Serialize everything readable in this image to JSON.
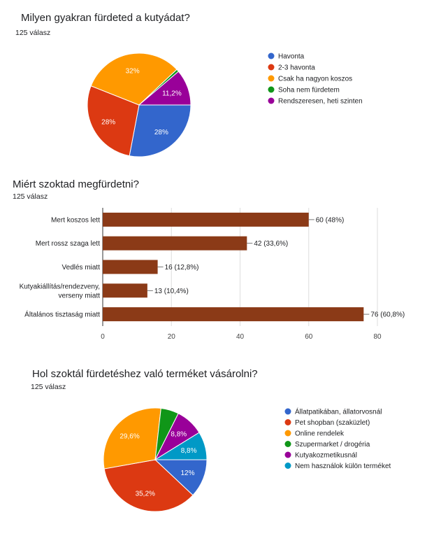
{
  "charts": [
    {
      "title": "Milyen gyakran fürdeted a kutyádat?",
      "responses": "125 válasz"
    },
    {
      "title": "Miért szoktad megfürdetni?",
      "responses": "125 válasz"
    },
    {
      "title": "Hol szoktál fürdetéshez való terméket vásárolni?",
      "responses": "125 válasz"
    }
  ],
  "chart_data": [
    {
      "type": "pie",
      "title": "Milyen gyakran fürdeted a kutyádat?",
      "labels": [
        "Havonta",
        "2-3 havonta",
        "Csak ha nagyon koszos",
        "Soha nem fürdetem",
        "Rendszeresen, heti szinten"
      ],
      "values": [
        28,
        28,
        32,
        0.8,
        11.2
      ],
      "value_labels": [
        "28%",
        "28%",
        "32%",
        "",
        "11,2%"
      ],
      "colors": [
        "#3366cc",
        "#dc3912",
        "#ff9900",
        "#109618",
        "#990099"
      ],
      "legend": "right"
    },
    {
      "type": "bar",
      "orientation": "horizontal",
      "title": "Miért szoktad megfürdetni?",
      "categories": [
        [
          "Mert koszos lett"
        ],
        [
          "Mert rossz szaga lett"
        ],
        [
          "Vedlés miatt"
        ],
        [
          "Kutyakiállítás/rendezveny,",
          "verseny miatt"
        ],
        [
          "Általános tisztaság miatt"
        ]
      ],
      "values": [
        60,
        42,
        16,
        13,
        76
      ],
      "value_labels": [
        "60 (48%)",
        "42 (33,6%)",
        "16 (12,8%)",
        "13 (10,4%)",
        "76 (60,8%)"
      ],
      "xlim": [
        0,
        80
      ],
      "xticks": [
        0,
        20,
        40,
        60,
        80
      ],
      "color": "#8b3a17",
      "grid": true
    },
    {
      "type": "pie",
      "title": "Hol szoktál fürdetéshez való terméket vásárolni?",
      "labels": [
        "Állatpatikában, állatorvosnál",
        "Pet shopban (szaküzlet)",
        "Online rendelek",
        "Szupermarket / drogéria",
        "Kutyakozmetikusnál",
        "Nem használok külön terméket"
      ],
      "values": [
        12,
        35.2,
        29.6,
        5.6,
        8.8,
        8.8
      ],
      "value_labels": [
        "12%",
        "35,2%",
        "29,6%",
        "",
        "8,8%",
        "8,8%"
      ],
      "colors": [
        "#3366cc",
        "#dc3912",
        "#ff9900",
        "#109618",
        "#990099",
        "#0099c6"
      ],
      "legend": "right"
    }
  ]
}
